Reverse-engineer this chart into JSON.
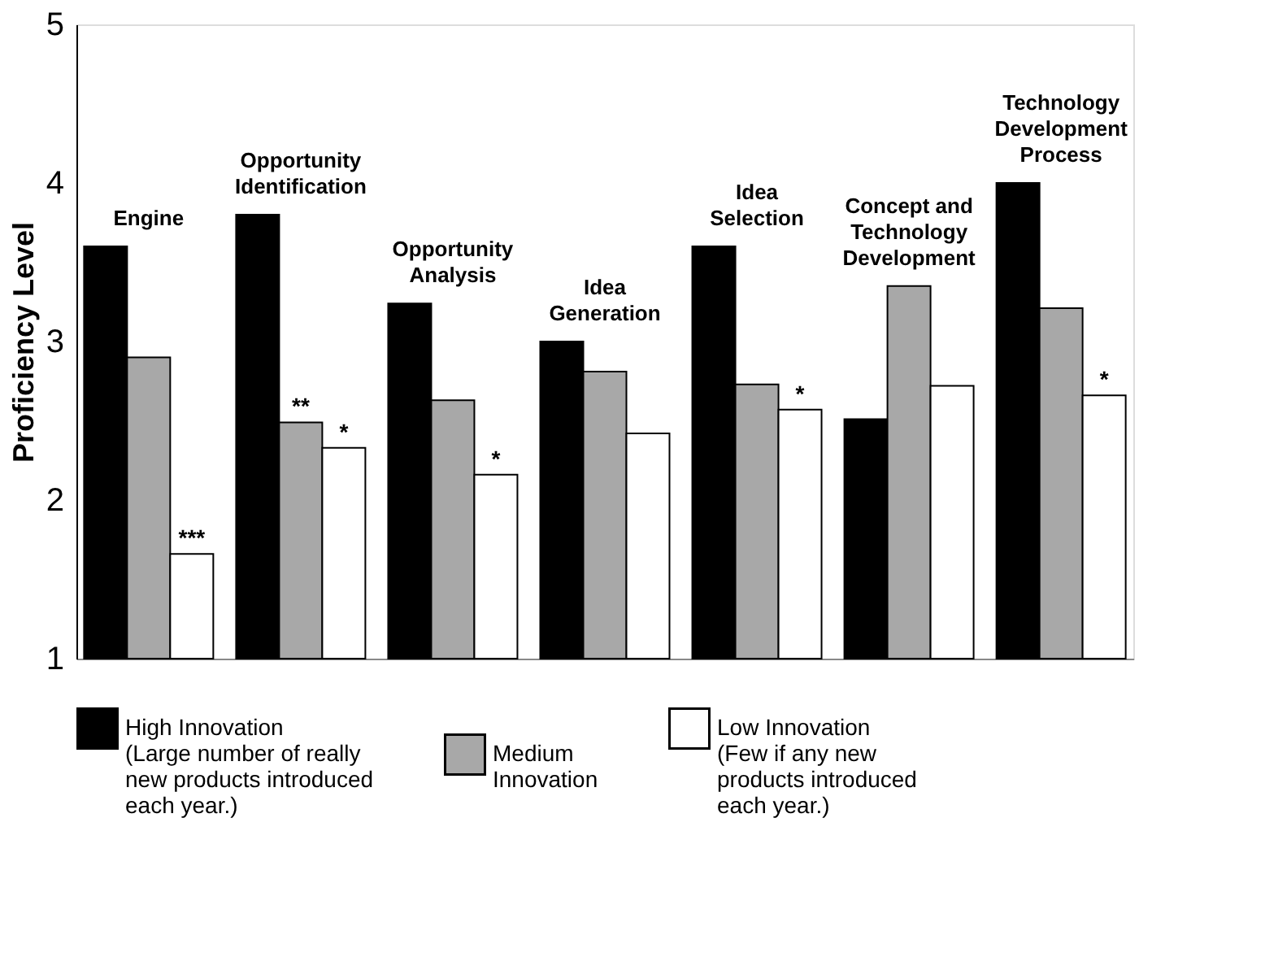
{
  "chart_data": {
    "type": "bar",
    "ylabel": "Proficiency Level",
    "categories": [
      "Engine",
      "Opportunity\nIdentification",
      "Opportunity\nAnalysis",
      "Idea\nGeneration",
      "Idea\nSelection",
      "Concept and\nTechnology\nDevelopment",
      "Technology\nDevelopment\nProcess"
    ],
    "series": [
      {
        "name": "High Innovation\n(Large number of really\nnew products introduced\neach year.)",
        "color": "#000000",
        "values": [
          3.6,
          3.8,
          3.24,
          3.0,
          3.6,
          2.51,
          4.0
        ]
      },
      {
        "name": "Medium\nInnovation",
        "color": "#a8a8a8",
        "values": [
          2.9,
          2.49,
          2.63,
          2.81,
          2.73,
          3.35,
          3.21
        ],
        "value_labels": [
          null,
          "**",
          null,
          null,
          null,
          null,
          null
        ]
      },
      {
        "name": "Low Innovation\n(Few if any new\nproducts introduced\neach year.)",
        "color": "#ffffff",
        "values": [
          1.66,
          2.33,
          2.16,
          2.42,
          2.57,
          2.72,
          2.66
        ],
        "value_labels": [
          "***",
          "*",
          "*",
          null,
          "*",
          null,
          "*"
        ]
      }
    ],
    "ylim": [
      1,
      5
    ],
    "yticks": [
      {
        "value": 1,
        "label": "1"
      },
      {
        "value": 2,
        "label": "2"
      },
      {
        "value": 3,
        "label": "3"
      },
      {
        "value": 4,
        "label": "4"
      },
      {
        "value": 5,
        "label": "5"
      }
    ],
    "legend": "bottom"
  }
}
